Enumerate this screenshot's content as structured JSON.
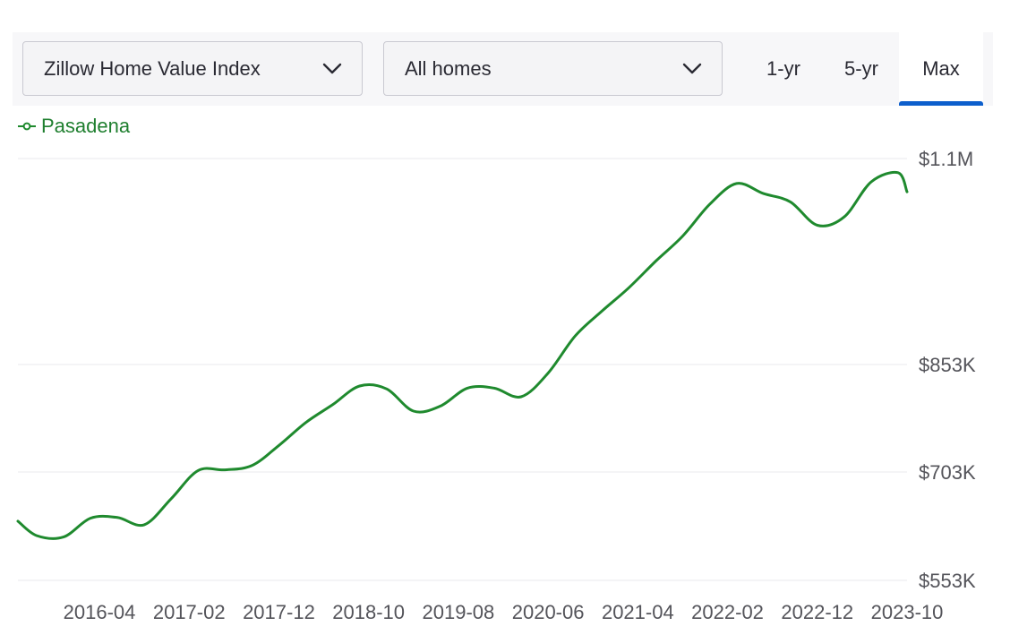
{
  "controls": {
    "metric_select": "Zillow Home Value Index",
    "home_type_select": "All homes",
    "range_buttons": [
      "1-yr",
      "5-yr",
      "Max"
    ],
    "selected_range": "Max"
  },
  "colors": {
    "series": "#1f8a2e",
    "accent": "#0d5fcc",
    "grid": "#e8e8ec",
    "axis_text": "#54545a"
  },
  "chart_data": {
    "type": "line",
    "legend": [
      "Pasadena"
    ],
    "y_ticks": [
      {
        "value": 553000,
        "label": "$553K"
      },
      {
        "value": 703000,
        "label": "$703K"
      },
      {
        "value": 853000,
        "label": "$853K"
      },
      {
        "value": 1100000,
        "label": "$1.1M"
      }
    ],
    "x_ticks": [
      "2016-04",
      "2017-02",
      "2017-12",
      "2018-10",
      "2019-08",
      "2020-06",
      "2021-04",
      "2022-02",
      "2022-12",
      "2023-10"
    ],
    "grid": true,
    "series": [
      {
        "name": "Pasadena",
        "x": [
          "2015-06",
          "2015-09",
          "2015-12",
          "2016-03",
          "2016-06",
          "2016-09",
          "2016-12",
          "2017-03",
          "2017-06",
          "2017-09",
          "2017-12",
          "2018-03",
          "2018-06",
          "2018-09",
          "2018-12",
          "2019-03",
          "2019-06",
          "2019-09",
          "2019-12",
          "2020-03",
          "2020-06",
          "2020-09",
          "2020-12",
          "2021-03",
          "2021-06",
          "2021-09",
          "2021-12",
          "2022-03",
          "2022-06",
          "2022-09",
          "2022-12",
          "2023-03",
          "2023-06",
          "2023-09",
          "2023-12"
        ],
        "y": [
          635000,
          615000,
          613000,
          639000,
          640000,
          630000,
          666000,
          705000,
          706000,
          712000,
          740000,
          772000,
          797000,
          823000,
          819000,
          788000,
          795000,
          820000,
          820000,
          808000,
          841000,
          887000,
          917000,
          945000,
          977000,
          1007000,
          1045000,
          1070000,
          1058000,
          1048000,
          1020000,
          1030000,
          1072000,
          1083000,
          1060000
        ]
      }
    ]
  }
}
